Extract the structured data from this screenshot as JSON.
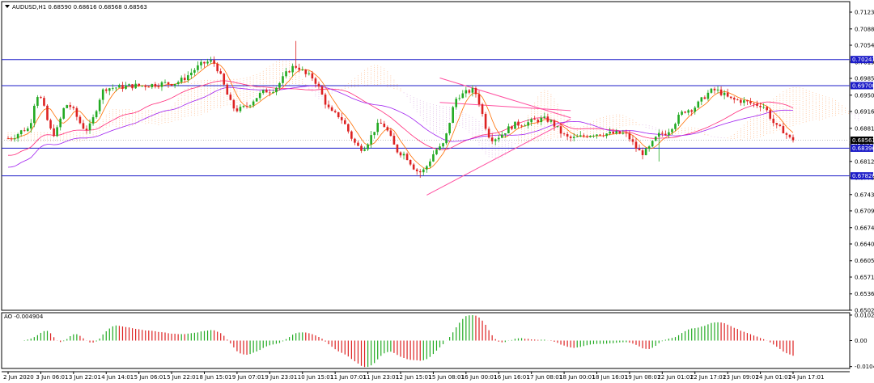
{
  "header": {
    "main_title": "AUDUSD,H1  0.68590 0.68616 0.68568 0.68563",
    "ao_title": "AO -0.004904"
  },
  "chart_data": {
    "type": "candlestick",
    "symbol": "AUDUSD",
    "timeframe": "H1",
    "ohlc_last": {
      "open": 0.6859,
      "high": 0.68616,
      "low": 0.68568,
      "close": 0.68563
    },
    "y_range": [
      0.6502,
      0.7145
    ],
    "y_ticks": [
      "0.71231",
      "0.70881",
      "0.70541",
      "0.70191",
      "0.69851",
      "0.69501",
      "0.69161",
      "0.68811",
      "0.68471",
      "0.68121",
      "0.67781",
      "0.67431",
      "0.67091",
      "0.66741",
      "0.66401",
      "0.66051",
      "0.65711",
      "0.65361",
      "0.65021"
    ],
    "x_range": [
      0,
      240
    ],
    "x_ticks": [
      {
        "t": 0,
        "label": "2 Jun 2020"
      },
      {
        "t": 10,
        "label": "3 Jun 06:01"
      },
      {
        "t": 20,
        "label": "3 Jun 22:01"
      },
      {
        "t": 30,
        "label": "4 Jun 14:01"
      },
      {
        "t": 40,
        "label": "5 Jun 06:01"
      },
      {
        "t": 50,
        "label": "5 Jun 22:01"
      },
      {
        "t": 60,
        "label": "8 Jun 15:01"
      },
      {
        "t": 70,
        "label": "9 Jun 07:01"
      },
      {
        "t": 80,
        "label": "9 Jun 23:01"
      },
      {
        "t": 90,
        "label": "10 Jun 15:01"
      },
      {
        "t": 100,
        "label": "11 Jun 07:01"
      },
      {
        "t": 110,
        "label": "11 Jun 23:01"
      },
      {
        "t": 120,
        "label": "12 Jun 15:01"
      },
      {
        "t": 130,
        "label": "15 Jun 08:01"
      },
      {
        "t": 140,
        "label": "16 Jun 00:01"
      },
      {
        "t": 150,
        "label": "16 Jun 16:01"
      },
      {
        "t": 160,
        "label": "17 Jun 08:01"
      },
      {
        "t": 170,
        "label": "18 Jun 00:01"
      },
      {
        "t": 180,
        "label": "18 Jun 16:01"
      },
      {
        "t": 190,
        "label": "19 Jun 08:01"
      },
      {
        "t": 200,
        "label": "22 Jun 01:01"
      },
      {
        "t": 210,
        "label": "22 Jun 17:01"
      },
      {
        "t": 220,
        "label": "23 Jun 09:01"
      },
      {
        "t": 230,
        "label": "24 Jun 01:01"
      },
      {
        "t": 240,
        "label": "24 Jun 17:01"
      }
    ],
    "current_price": {
      "value": 0.68563,
      "label": "0.68563"
    },
    "horizontal_levels": [
      {
        "value": 0.70243,
        "label": "0.70243"
      },
      {
        "value": 0.697,
        "label": "0.69700"
      },
      {
        "value": 0.68396,
        "label": "0.68396"
      },
      {
        "value": 0.6782,
        "label": "0.67820"
      }
    ],
    "trendlines": [
      {
        "t1": 132,
        "p1": 0.6935,
        "t2": 172,
        "p2": 0.6918
      },
      {
        "t1": 128,
        "p1": 0.6742,
        "t2": 172,
        "p2": 0.69
      },
      {
        "t1": 132,
        "p1": 0.6986,
        "t2": 172,
        "p2": 0.6903
      }
    ],
    "key_prices": [
      {
        "t": 0,
        "p": 0.686
      },
      {
        "t": 6,
        "p": 0.688
      },
      {
        "t": 9,
        "p": 0.695
      },
      {
        "t": 14,
        "p": 0.687
      },
      {
        "t": 18,
        "p": 0.693
      },
      {
        "t": 24,
        "p": 0.688
      },
      {
        "t": 30,
        "p": 0.6965
      },
      {
        "t": 40,
        "p": 0.697
      },
      {
        "t": 50,
        "p": 0.6975
      },
      {
        "t": 62,
        "p": 0.702
      },
      {
        "t": 70,
        "p": 0.692
      },
      {
        "t": 80,
        "p": 0.696
      },
      {
        "t": 88,
        "p": 0.701
      },
      {
        "t": 92,
        "p": 0.699
      },
      {
        "t": 100,
        "p": 0.691
      },
      {
        "t": 108,
        "p": 0.684
      },
      {
        "t": 114,
        "p": 0.689
      },
      {
        "t": 120,
        "p": 0.683
      },
      {
        "t": 126,
        "p": 0.679
      },
      {
        "t": 132,
        "p": 0.684
      },
      {
        "t": 138,
        "p": 0.695
      },
      {
        "t": 142,
        "p": 0.696
      },
      {
        "t": 148,
        "p": 0.686
      },
      {
        "t": 156,
        "p": 0.689
      },
      {
        "t": 164,
        "p": 0.69
      },
      {
        "t": 172,
        "p": 0.686
      },
      {
        "t": 180,
        "p": 0.687
      },
      {
        "t": 188,
        "p": 0.687
      },
      {
        "t": 194,
        "p": 0.683
      },
      {
        "t": 200,
        "p": 0.687
      },
      {
        "t": 208,
        "p": 0.692
      },
      {
        "t": 216,
        "p": 0.696
      },
      {
        "t": 222,
        "p": 0.694
      },
      {
        "t": 230,
        "p": 0.693
      },
      {
        "t": 236,
        "p": 0.688
      },
      {
        "t": 240,
        "p": 0.6856
      }
    ],
    "ao": {
      "y_ticks": [
        "0.010241",
        "0.00",
        "-0.010443"
      ],
      "range": [
        -0.0112,
        0.0112
      ]
    },
    "colors": {
      "bull": "#22aa22",
      "bear": "#dd2222",
      "level": "#1c1cc8",
      "tag_bg": "#1c1cc8",
      "ma_fast": "#ff6e00",
      "ma_slow": "#ff2a7a",
      "ma_purple": "#a020f0",
      "trend": "#ff4fa0",
      "cloud_up": "#ffb07a",
      "cloud_down": "#d7a8e0",
      "price_tag_bg": "#000000"
    }
  }
}
